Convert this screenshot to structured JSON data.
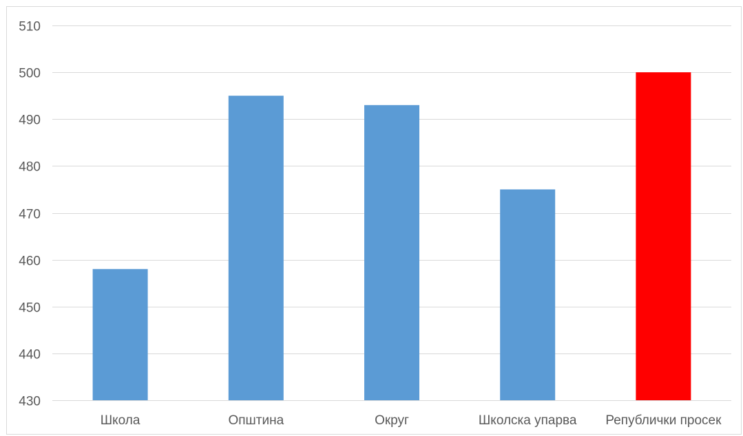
{
  "chart_data": {
    "type": "bar",
    "categories": [
      "Школа",
      "Општина",
      "Округ",
      "Школска упарва",
      "Републички просек"
    ],
    "values": [
      458,
      495,
      493,
      475,
      500
    ],
    "bar_colors": [
      "#5b9bd5",
      "#5b9bd5",
      "#5b9bd5",
      "#5b9bd5",
      "#ff0000"
    ],
    "title": "",
    "xlabel": "",
    "ylabel": "",
    "ylim": [
      430,
      510
    ],
    "yticks": [
      430,
      440,
      450,
      460,
      470,
      480,
      490,
      500,
      510
    ],
    "grid": true,
    "legend": "none"
  }
}
